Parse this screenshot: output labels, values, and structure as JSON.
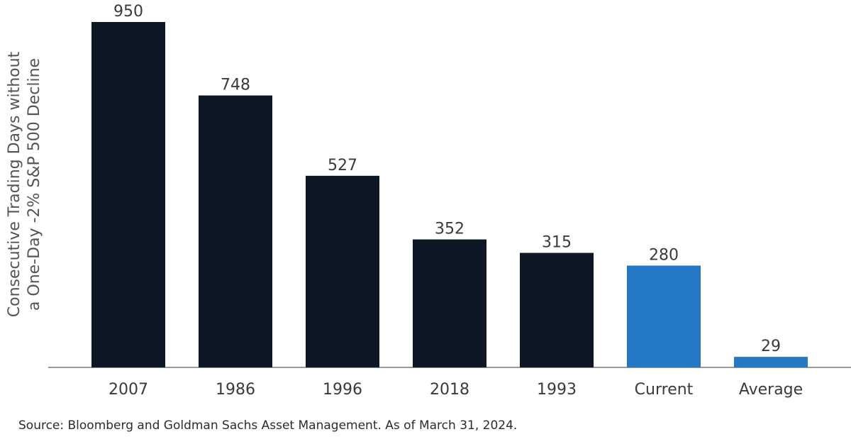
{
  "chart_data": {
    "type": "bar",
    "categories": [
      "2007",
      "1986",
      "1996",
      "2018",
      "1993",
      "Current",
      "Average"
    ],
    "values": [
      950,
      748,
      527,
      352,
      315,
      280,
      29
    ],
    "ylabel_lines": [
      "Consecutive Trading Days without",
      "a One-Day -2% S&P 500 Decline"
    ],
    "xlabel": "",
    "ylim": [
      0,
      950
    ],
    "grid": false,
    "colors": {
      "default": "#0e1726",
      "highlight": "#2478c4"
    },
    "highlight_categories": [
      "Current",
      "Average"
    ]
  },
  "source": "Source: Bloomberg and Goldman Sachs Asset Management. As of March 31, 2024."
}
